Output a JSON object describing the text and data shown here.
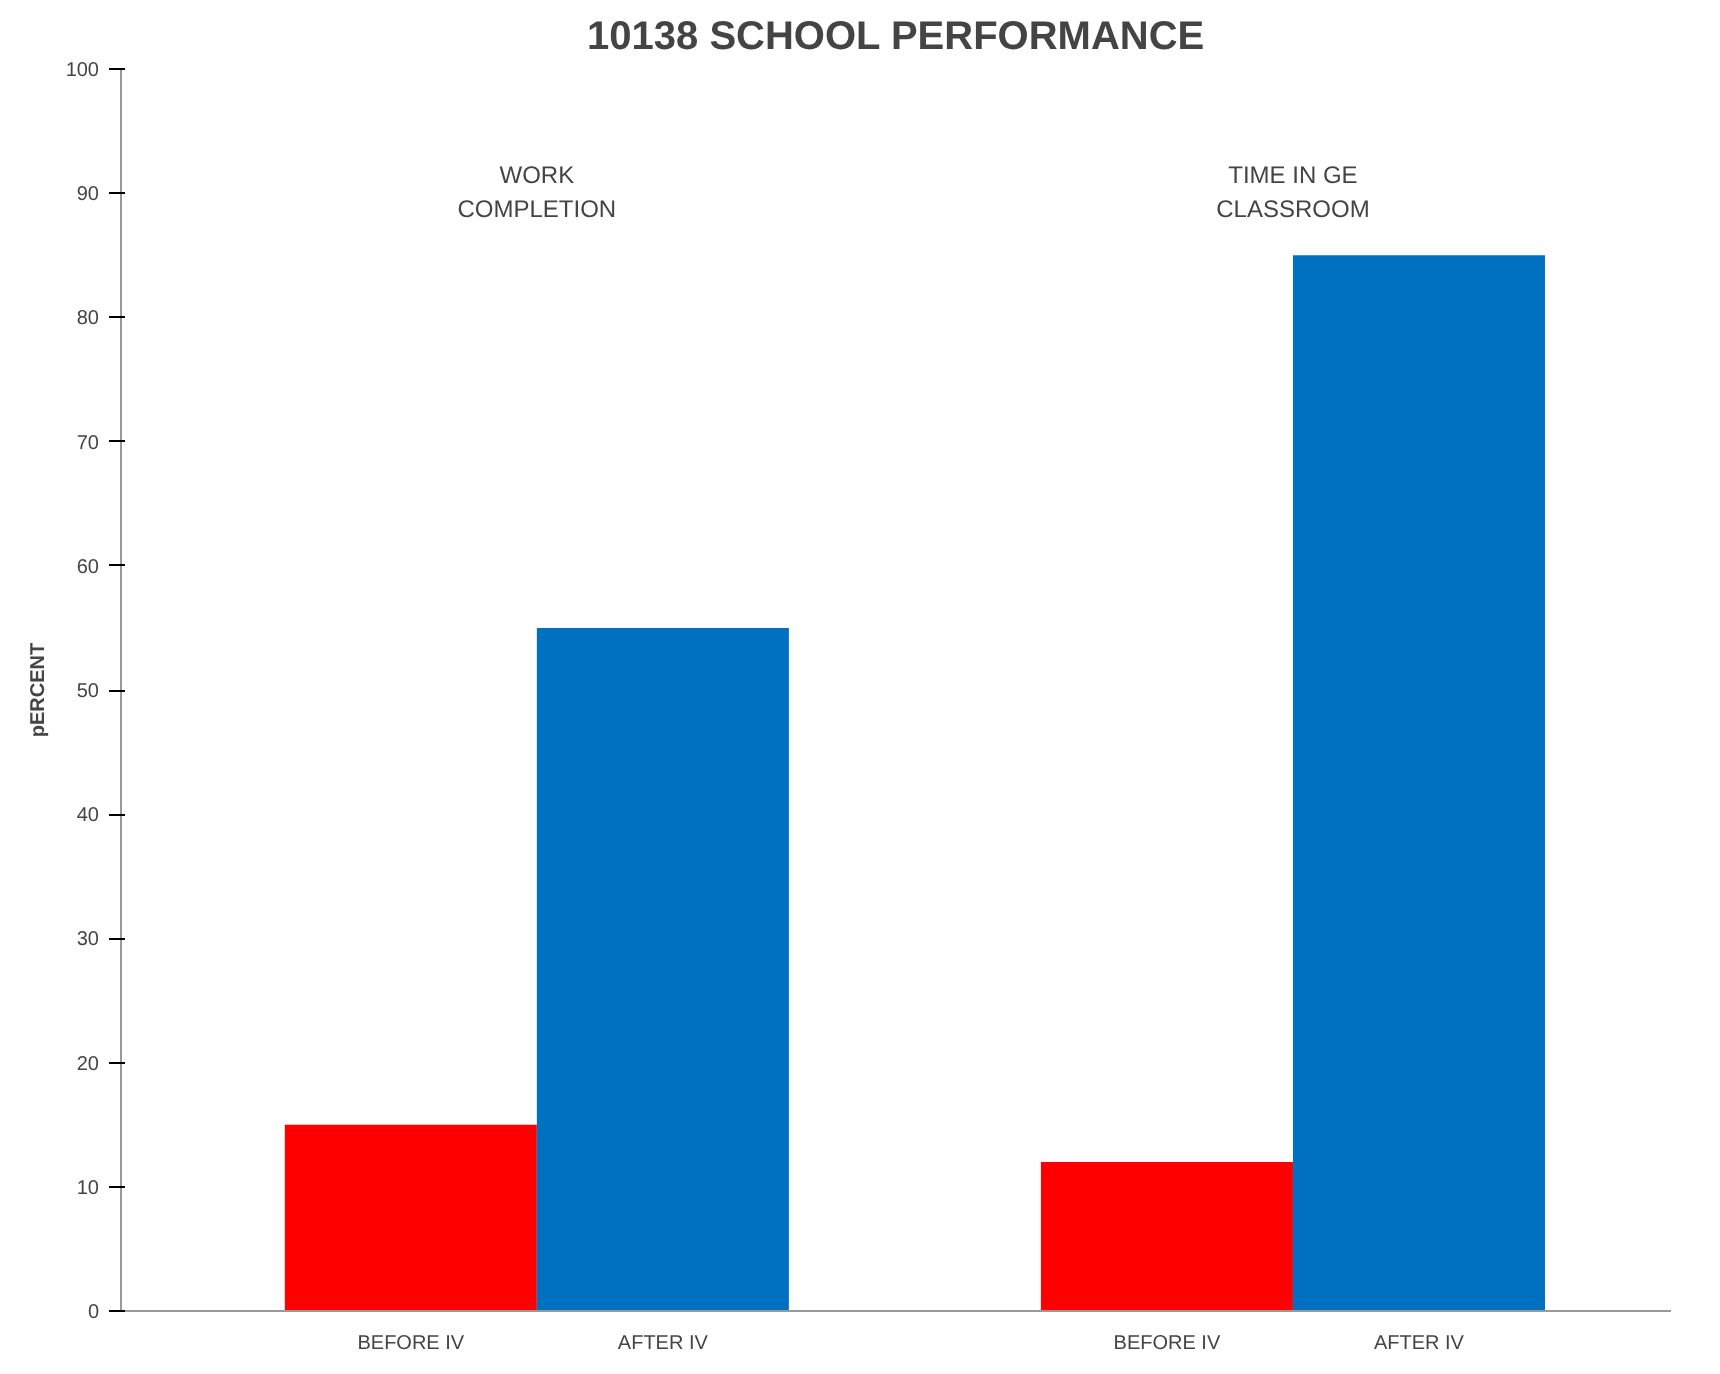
{
  "chart_data": {
    "type": "bar",
    "title": "10138 SCHOOL PERFORMANCE",
    "ylabel": "pERCENT",
    "categories": [
      "BEFORE IV",
      "AFTER IV",
      "BEFORE IV",
      "AFTER IV"
    ],
    "values": [
      15,
      55,
      12,
      85
    ],
    "colors": [
      "#ff0000",
      "#0070c0",
      "#ff0000",
      "#0070c0"
    ],
    "annotations": [
      "WORK\nCOMPLETION",
      "TIME IN GE\nCLASSROOM"
    ],
    "ylim": [
      0,
      100
    ],
    "yticks": [
      0,
      10,
      20,
      30,
      40,
      50,
      60,
      70,
      80,
      90,
      100
    ]
  }
}
